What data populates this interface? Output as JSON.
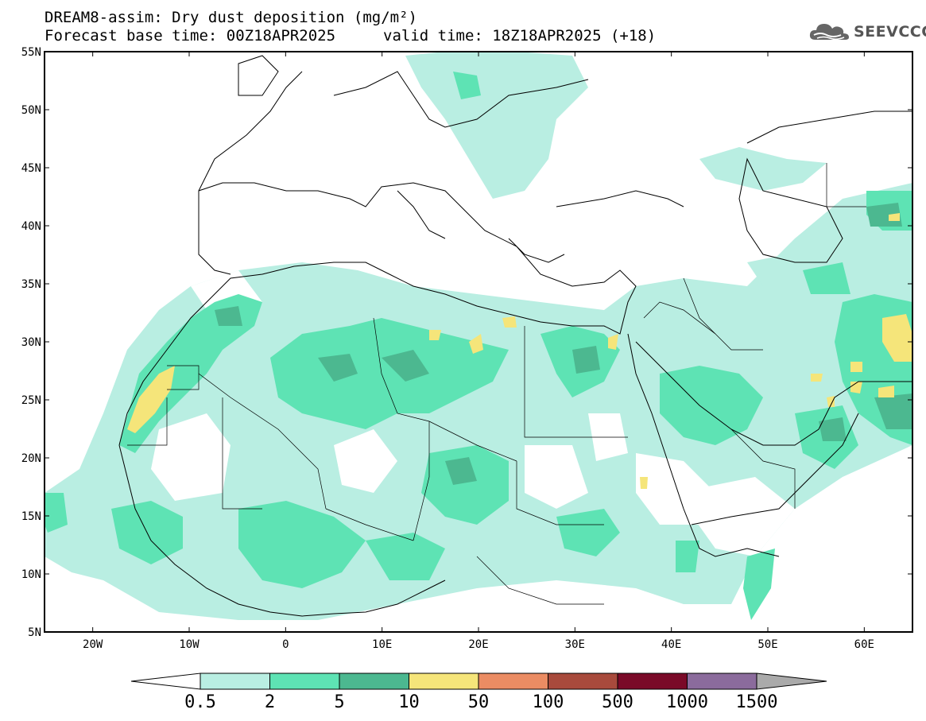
{
  "header": {
    "title_line1": "DREAM8-assim: Dry dust deposition (mg/m²)",
    "base_time": "Forecast base time: 00Z18APR2025",
    "valid_time": "valid time: 18Z18APR2025 (+18)"
  },
  "logo": {
    "text": "SEEVCCC",
    "icon": "cloud-icon"
  },
  "map": {
    "lat_labels": [
      "55N",
      "50N",
      "45N",
      "40N",
      "35N",
      "30N",
      "25N",
      "20N",
      "15N",
      "10N",
      "5N"
    ],
    "lon_labels": [
      "20W",
      "10W",
      "0",
      "10E",
      "20E",
      "30E",
      "40E",
      "50E",
      "60E"
    ],
    "lon_range": [
      -25,
      65
    ],
    "lat_range": [
      5,
      55
    ]
  },
  "colorbar": {
    "labels": [
      "0.5",
      "2",
      "5",
      "10",
      "50",
      "100",
      "500",
      "1000",
      "1500"
    ],
    "colors": [
      "#b9eee2",
      "#5ee3b4",
      "#4cb890",
      "#f5e57a",
      "#eb8c63",
      "#a84a3c",
      "#7a0a28",
      "#8b6b9c",
      "#aaaaaa"
    ]
  }
}
